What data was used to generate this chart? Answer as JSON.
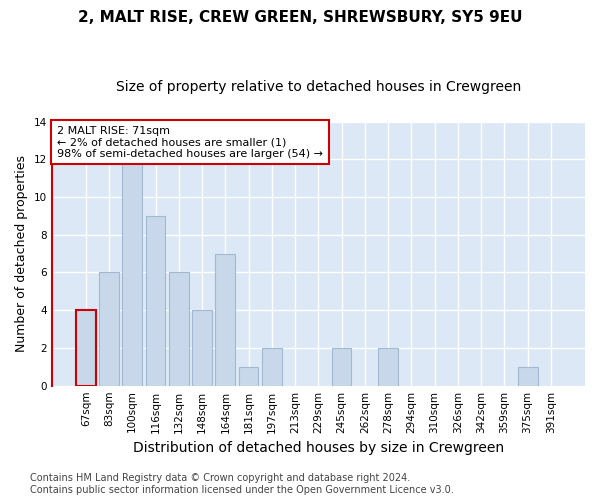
{
  "title": "2, MALT RISE, CREW GREEN, SHREWSBURY, SY5 9EU",
  "subtitle": "Size of property relative to detached houses in Crewgreen",
  "xlabel": "Distribution of detached houses by size in Crewgreen",
  "ylabel": "Number of detached properties",
  "categories": [
    "67sqm",
    "83sqm",
    "100sqm",
    "116sqm",
    "132sqm",
    "148sqm",
    "164sqm",
    "181sqm",
    "197sqm",
    "213sqm",
    "229sqm",
    "245sqm",
    "262sqm",
    "278sqm",
    "294sqm",
    "310sqm",
    "326sqm",
    "342sqm",
    "359sqm",
    "375sqm",
    "391sqm"
  ],
  "values": [
    4,
    6,
    12,
    9,
    6,
    4,
    7,
    1,
    2,
    0,
    0,
    2,
    0,
    2,
    0,
    0,
    0,
    0,
    0,
    1,
    0
  ],
  "bar_color": "#c8d8ea",
  "bar_edge_color": "#a0b8d0",
  "highlight_edge_color": "#cc0000",
  "annotation_text": "2 MALT RISE: 71sqm\n← 2% of detached houses are smaller (1)\n98% of semi-detached houses are larger (54) →",
  "annotation_box_color": "white",
  "annotation_box_edge_color": "#cc0000",
  "ylim": [
    0,
    14
  ],
  "yticks": [
    0,
    2,
    4,
    6,
    8,
    10,
    12,
    14
  ],
  "footer_line1": "Contains HM Land Registry data © Crown copyright and database right 2024.",
  "footer_line2": "Contains public sector information licensed under the Open Government Licence v3.0.",
  "bg_color": "#ffffff",
  "plot_bg_color": "#dce8f5",
  "grid_color": "#ffffff",
  "title_fontsize": 11,
  "subtitle_fontsize": 10,
  "xlabel_fontsize": 10,
  "ylabel_fontsize": 9,
  "tick_fontsize": 7.5,
  "annotation_fontsize": 8,
  "footer_fontsize": 7
}
